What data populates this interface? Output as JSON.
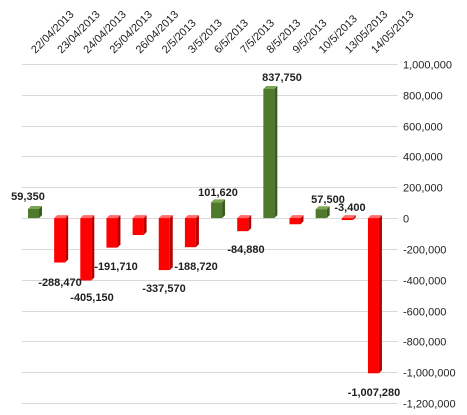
{
  "chart_data": {
    "type": "bar",
    "categories": [
      "22/04/2013",
      "23/04/2013",
      "24/04/2013",
      "25/04/2013",
      "26/04/2013",
      "2/5/2013",
      "3/5/2013",
      "6/5/2013",
      "7/5/2013",
      "8/5/2013",
      "9/5/2013",
      "10/5/2013",
      "13/05/2013",
      "14/05/2013"
    ],
    "values": [
      59350,
      -288470,
      -405150,
      -191710,
      -110000,
      -337570,
      -188720,
      101620,
      -84880,
      837750,
      -40000,
      57500,
      -3400,
      -1007280
    ],
    "data_labels": [
      "59,350",
      "-288,470",
      "-405,150",
      "-191,710",
      "",
      "-337,570",
      "-188,720",
      "101,620",
      "-84,880",
      "837,750",
      "",
      "57,500",
      "-3,400",
      "-1,007,280"
    ],
    "ylim": [
      -1200000,
      1000000
    ],
    "yticks": [
      1000000,
      800000,
      600000,
      400000,
      200000,
      0,
      -200000,
      -400000,
      -600000,
      -800000,
      -1000000,
      -1200000
    ],
    "ytick_labels": [
      "1,000,000",
      "800,000",
      "600,000",
      "400,000",
      "200,000",
      "0",
      "-200,000",
      "-400,000",
      "-600,000",
      "-800,000",
      "-1,000,000",
      "-1,200,000"
    ],
    "y_axis_position": "right",
    "x_axis_position": "top",
    "grid": true,
    "title": "",
    "xlabel": "",
    "ylabel": "",
    "colors": {
      "positive": "#4f7a2c",
      "positive_side": "#3a5c1f",
      "positive_top": "#7da654",
      "negative": "#ff0000",
      "negative_side": "#b80000",
      "negative_top": "#ff6a6a",
      "grid": "#d9d9d9"
    }
  }
}
